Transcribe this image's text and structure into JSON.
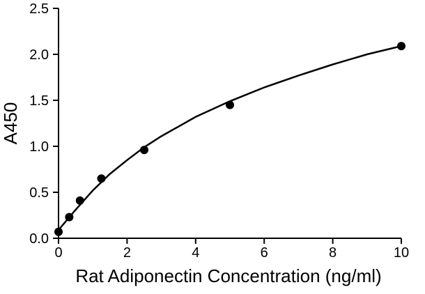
{
  "chart_data": {
    "type": "scatter",
    "title": "",
    "xlabel": "Rat Adiponectin Concentration (ng/ml)",
    "ylabel": "A450",
    "xlim": [
      0,
      10
    ],
    "ylim": [
      0,
      2.5
    ],
    "x_ticks": [
      0,
      2,
      4,
      6,
      8,
      10
    ],
    "y_ticks": [
      "0.0",
      "0.5",
      "1.0",
      "1.5",
      "2.0",
      "2.5"
    ],
    "grid": false,
    "series": [
      {
        "points": [
          {
            "x": 0,
            "y": 0.07
          },
          {
            "x": 0.3125,
            "y": 0.23
          },
          {
            "x": 0.625,
            "y": 0.41
          },
          {
            "x": 1.25,
            "y": 0.65
          },
          {
            "x": 2.5,
            "y": 0.96
          },
          {
            "x": 5,
            "y": 1.45
          },
          {
            "x": 10,
            "y": 2.09
          }
        ],
        "marker_color": "#000000"
      }
    ],
    "fit_curve": {
      "color": "#000000",
      "points": [
        {
          "x": 0,
          "y": 0.09
        },
        {
          "x": 0.5,
          "y": 0.31
        },
        {
          "x": 1,
          "y": 0.52
        },
        {
          "x": 1.5,
          "y": 0.7
        },
        {
          "x": 2,
          "y": 0.85
        },
        {
          "x": 2.5,
          "y": 0.99
        },
        {
          "x": 3,
          "y": 1.11
        },
        {
          "x": 4,
          "y": 1.32
        },
        {
          "x": 5,
          "y": 1.49
        },
        {
          "x": 6,
          "y": 1.64
        },
        {
          "x": 7,
          "y": 1.77
        },
        {
          "x": 8,
          "y": 1.89
        },
        {
          "x": 9,
          "y": 2.0
        },
        {
          "x": 10,
          "y": 2.09
        }
      ]
    }
  }
}
